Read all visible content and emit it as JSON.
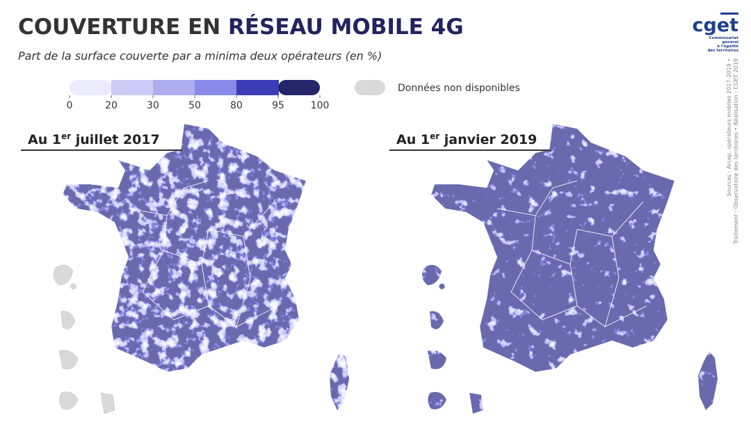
{
  "header": {
    "title_part1": "COUVERTURE EN ",
    "title_part2": "RÉSEAU MOBILE 4G",
    "subtitle": "Part de la surface couverte par a minima deux opérateurs (en %)"
  },
  "legend": {
    "ticks": [
      0,
      20,
      30,
      50,
      80,
      95,
      100
    ],
    "colors": [
      "#ebebfc",
      "#cbcbf6",
      "#adadf0",
      "#8a8ae8",
      "#3c3cb8",
      "#25256a"
    ],
    "na_label": "Données non disponibles",
    "na_color": "#d9d9d9"
  },
  "maps": [
    {
      "title_prefix": "Au 1",
      "title_sup": "er",
      "title_suffix": " juillet 2017"
    },
    {
      "title_prefix": "Au 1",
      "title_sup": "er",
      "title_suffix": " janvier 2019"
    }
  ],
  "logo": {
    "name": "cget",
    "caption": [
      "Commissariat",
      "général",
      "à l'égalité",
      "des territoires"
    ]
  },
  "sources": [
    "Sources : Arcep, opérateurs mobiles 2017-2019 •",
    "Traitement : Observatoire des territoires • Réalisation : CGET 2019"
  ]
}
